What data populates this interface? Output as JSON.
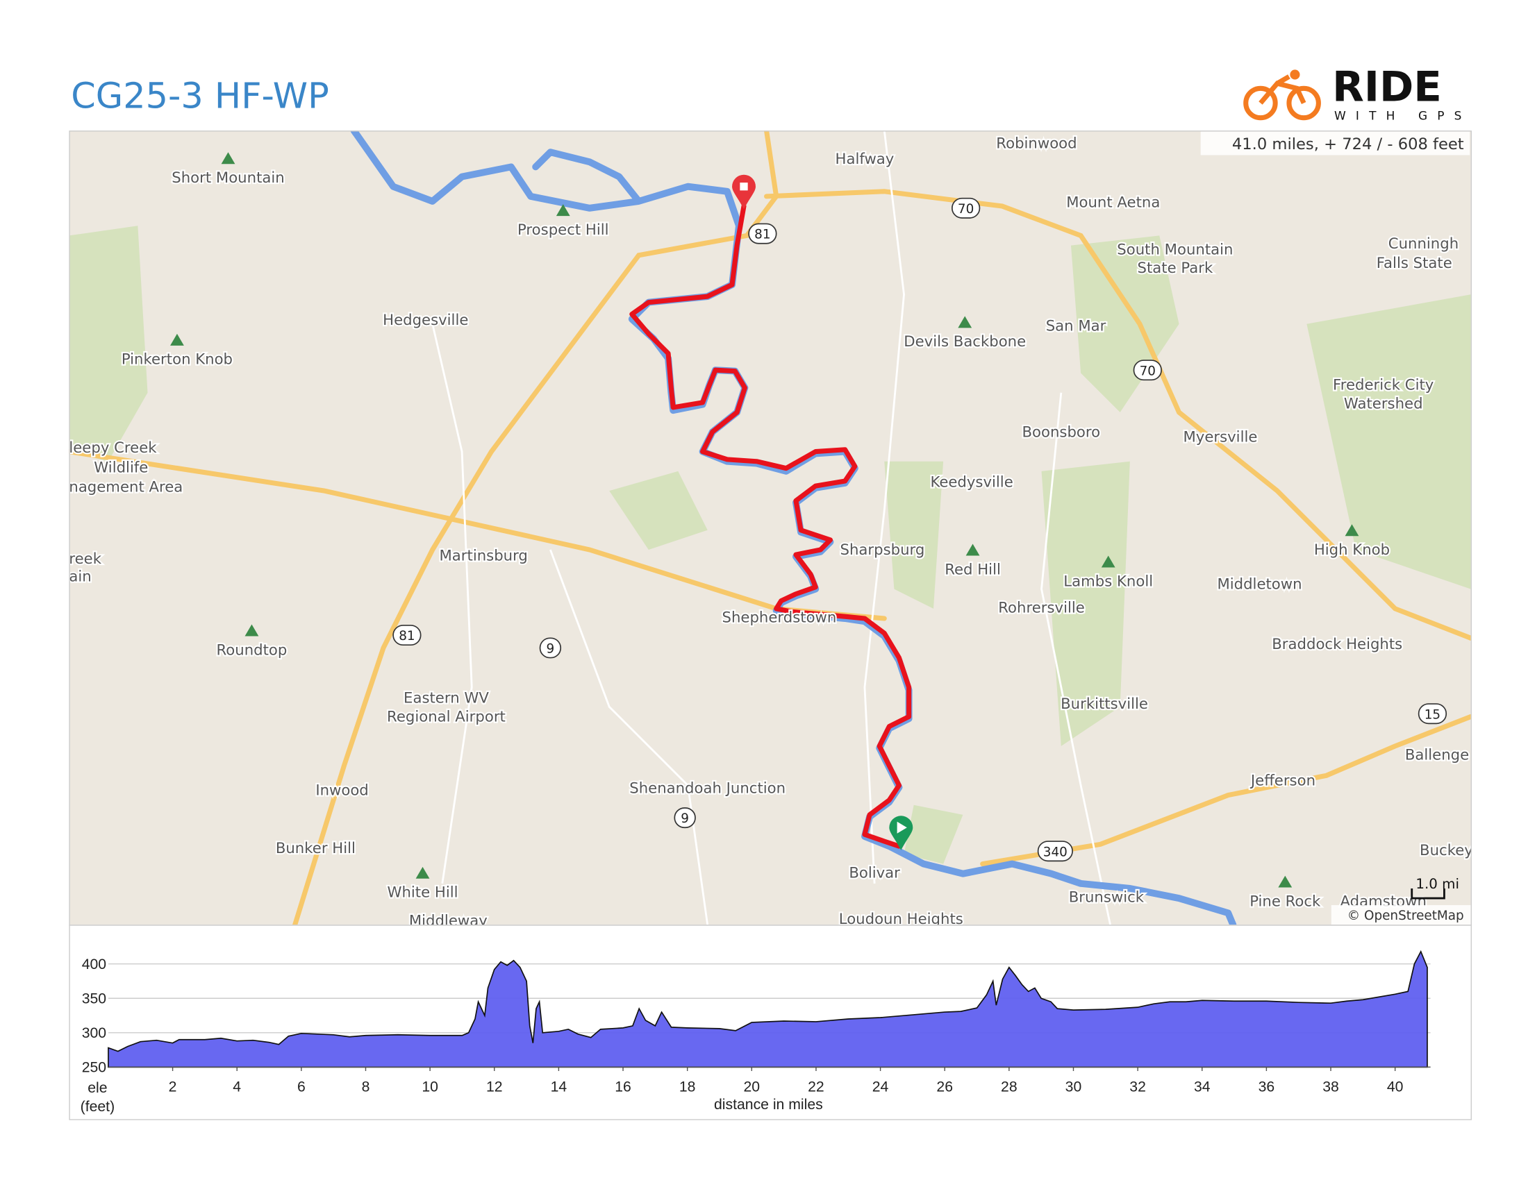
{
  "header": {
    "title": "CG25-3 HF-WP",
    "logo": "RIDE",
    "logo_sub": "WITH GPS"
  },
  "map": {
    "stats": "41.0 miles, + 724 / - 608 feet",
    "attribution": "© OpenStreetMap",
    "scale": "1.0 mi",
    "places": [
      "Short Mountain",
      "Prospect Hill",
      "Halfway",
      "Robinwood",
      "Mount Aetna",
      "South Mountain",
      "State Park",
      "Cunningh",
      "Falls State",
      "Hedgesville",
      "Pinkerton Knob",
      "Devils Backbone",
      "San Mar",
      "Frederick City",
      "Watershed",
      "Boonsboro",
      "Myersville",
      "leepy Creek",
      "Wildlife",
      "nagement Area",
      "Keedysville",
      "Martinsburg",
      "Sharpsburg",
      "Red Hill",
      "Lambs Knoll",
      "High Knob",
      "Middletown",
      "Rohrersville",
      "Shepherdstown",
      "Roundtop",
      "Braddock Heights",
      "Eastern WV",
      "Regional Airport",
      "Burkittsville",
      "Ballenge",
      "Inwood",
      "Shenandoah Junction",
      "Jefferson",
      "Bunker Hill",
      "Bolivar",
      "Brunswick",
      "Buckey",
      "White Hill",
      "Pine Rock",
      "Middleway",
      "Loudoun Heights",
      "Adamstown",
      "reek",
      "ain"
    ],
    "shields": [
      "81",
      "70",
      "70",
      "81",
      "9",
      "9",
      "340",
      "15"
    ]
  },
  "chart_data": {
    "type": "area",
    "x_label": "distance in miles",
    "y_label": "ele",
    "y_unit": "(feet)",
    "color": "#6060f0",
    "x": [
      0,
      0.3,
      0.6,
      1,
      1.5,
      2,
      2.2,
      3,
      3.5,
      4,
      4.5,
      5,
      5.3,
      5.6,
      6,
      6.5,
      7,
      7.5,
      8,
      9,
      10,
      11,
      11.2,
      11.4,
      11.5,
      11.7,
      11.8,
      12,
      12.2,
      12.4,
      12.6,
      12.8,
      13,
      13.1,
      13.2,
      13.3,
      13.4,
      13.5,
      14,
      14.3,
      14.6,
      15,
      15.3,
      16,
      16.3,
      16.5,
      16.7,
      17,
      17.2,
      17.5,
      18,
      19,
      19.5,
      20,
      21,
      22,
      23,
      24,
      25,
      26,
      26.5,
      27,
      27.3,
      27.5,
      27.6,
      27.8,
      28,
      28.2,
      28.4,
      28.6,
      28.8,
      29,
      29.3,
      29.5,
      30,
      31,
      32,
      32.5,
      33,
      33.5,
      34,
      35,
      36,
      37,
      38,
      38.5,
      39,
      40,
      40.4,
      40.6,
      40.8,
      41
    ],
    "values": [
      278,
      273,
      280,
      287,
      289,
      285,
      290,
      290,
      292,
      288,
      289,
      286,
      283,
      295,
      299,
      298,
      297,
      294,
      296,
      297,
      296,
      296,
      300,
      320,
      345,
      325,
      365,
      392,
      403,
      398,
      405,
      395,
      375,
      310,
      285,
      335,
      345,
      300,
      302,
      305,
      298,
      293,
      305,
      307,
      310,
      335,
      318,
      310,
      330,
      308,
      307,
      306,
      303,
      315,
      317,
      316,
      320,
      322,
      326,
      330,
      331,
      336,
      355,
      375,
      340,
      378,
      395,
      383,
      370,
      360,
      365,
      350,
      345,
      335,
      333,
      334,
      337,
      342,
      345,
      345,
      347,
      346,
      346,
      344,
      343,
      346,
      348,
      356,
      360,
      400,
      418,
      395
    ],
    "xlim": [
      0,
      41.1
    ],
    "ylim": [
      250,
      417
    ],
    "xticks": [
      2,
      4,
      6,
      8,
      10,
      12,
      14,
      16,
      18,
      20,
      22,
      24,
      26,
      28,
      30,
      32,
      34,
      36,
      38,
      40
    ],
    "yticks": [
      250,
      300,
      350,
      400
    ],
    "grid": true
  }
}
